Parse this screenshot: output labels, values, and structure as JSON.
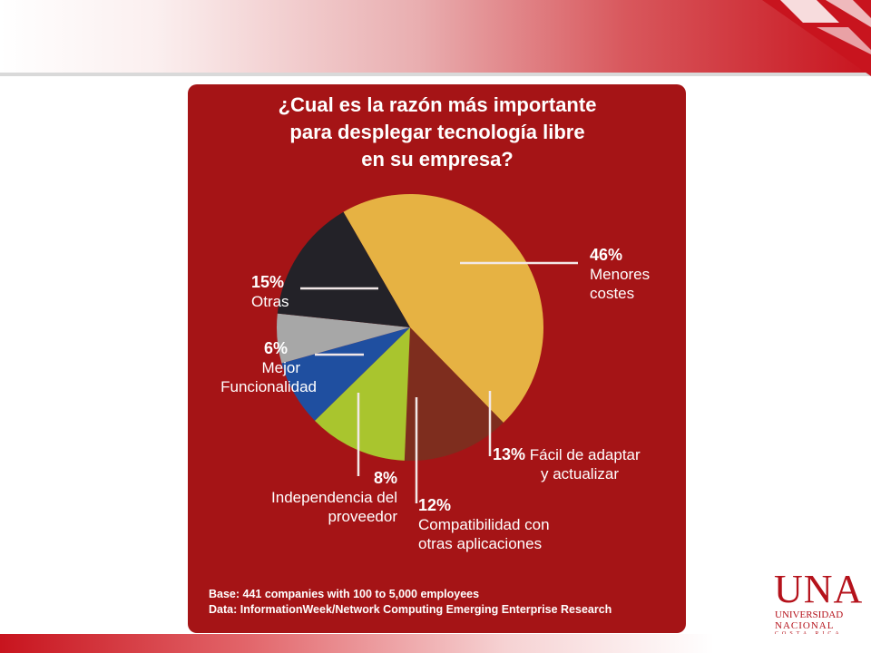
{
  "chart_data": {
    "type": "pie",
    "title_lines": [
      "¿Cual es la razón más importante",
      "para desplegar tecnología libre",
      "en su empresa?"
    ],
    "slices": [
      {
        "pct_label": "46%",
        "name_lines": [
          "Menores",
          "costes"
        ],
        "value": 46,
        "color": "#e6b243"
      },
      {
        "pct_label": "13%",
        "name_lines": [
          "Fácil de adaptar",
          "y actualizar"
        ],
        "value": 13,
        "color": "#7e2d1e"
      },
      {
        "pct_label": "12%",
        "name_lines": [
          "Compatibilidad con",
          "otras aplicaciones"
        ],
        "value": 12,
        "color": "#a9c52e"
      },
      {
        "pct_label": "8%",
        "name_lines": [
          "Independencia del",
          "proveedor"
        ],
        "value": 8,
        "color": "#1f4fa0"
      },
      {
        "pct_label": "6%",
        "name_lines": [
          "Mejor",
          "Funcionalidad"
        ],
        "value": 6,
        "color": "#a7a7a7"
      },
      {
        "pct_label": "15%",
        "name_lines": [
          "Otras"
        ],
        "value": 15,
        "color": "#232228"
      }
    ],
    "footnotes": [
      "Base: 441 companies with 100 to 5,000 employees",
      "Data: InformationWeek/Network Computing Emerging Enterprise Research"
    ]
  },
  "logo": {
    "name": "UNA",
    "line1": "UNIVERSIDAD",
    "line2": "NACIONAL",
    "line3": "COSTA RICA"
  },
  "colors": {
    "card_background": "#a51416",
    "accent": "#c8141e"
  }
}
